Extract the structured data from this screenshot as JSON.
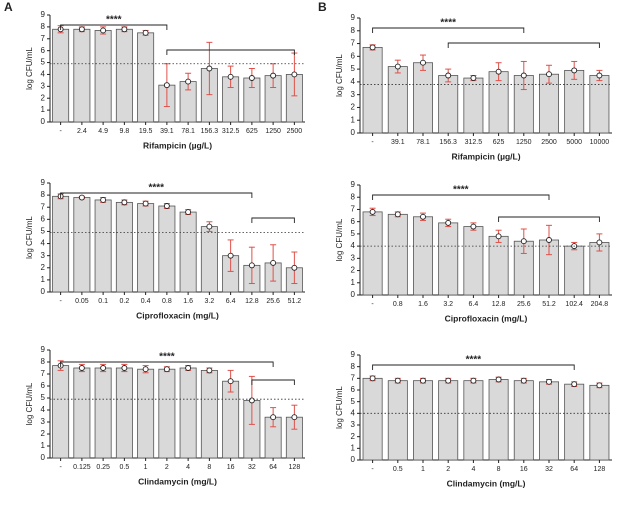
{
  "panel_labels": [
    "A",
    "B"
  ],
  "chart_data": [
    {
      "type": "bar",
      "y_label": "log CFU/mL",
      "x_label": "Rifampicin (µg/L)",
      "significance": "****",
      "threshold": 4.9,
      "ylim": [
        0,
        9
      ],
      "yticks": [
        0,
        1,
        2,
        3,
        4,
        5,
        6,
        7,
        8,
        9
      ],
      "categories": [
        "-",
        "2.4",
        "4.9",
        "9.8",
        "19.5",
        "39.1",
        "78.1",
        "156.3",
        "312.5",
        "625",
        "1250",
        "2500"
      ],
      "values": [
        7.8,
        7.8,
        7.7,
        7.8,
        7.5,
        3.1,
        3.4,
        4.5,
        3.8,
        3.7,
        3.9,
        4.0
      ],
      "errors": [
        0.3,
        0.2,
        0.3,
        0.2,
        0.2,
        1.8,
        0.7,
        2.2,
        0.9,
        0.8,
        1.0,
        1.8
      ]
    },
    {
      "type": "bar",
      "y_label": "log CFU/mL",
      "x_label": "Ciprofloxacin (mg/L)",
      "significance": "****",
      "threshold": 4.9,
      "ylim": [
        0,
        9
      ],
      "yticks": [
        0,
        1,
        2,
        3,
        4,
        5,
        6,
        7,
        8,
        9
      ],
      "categories": [
        "-",
        "0.05",
        "0.1",
        "0.2",
        "0.4",
        "0.8",
        "1.6",
        "3.2",
        "6.4",
        "12.8",
        "25.6",
        "51.2"
      ],
      "values": [
        7.9,
        7.8,
        7.6,
        7.4,
        7.3,
        7.1,
        6.6,
        5.4,
        3.0,
        2.2,
        2.4,
        2.0
      ],
      "errors": [
        0.2,
        0.1,
        0.2,
        0.2,
        0.2,
        0.2,
        0.2,
        0.4,
        1.3,
        1.5,
        1.5,
        1.3
      ]
    },
    {
      "type": "bar",
      "y_label": "log CFU/mL",
      "x_label": "Clindamycin (mg/L)",
      "significance": "****",
      "threshold": 4.9,
      "ylim": [
        0,
        9
      ],
      "yticks": [
        0,
        1,
        2,
        3,
        4,
        5,
        6,
        7,
        8,
        9
      ],
      "categories": [
        "-",
        "0.125",
        "0.25",
        "0.5",
        "1",
        "2",
        "4",
        "8",
        "16",
        "32",
        "64",
        "128"
      ],
      "values": [
        7.7,
        7.5,
        7.5,
        7.5,
        7.4,
        7.4,
        7.5,
        7.3,
        6.4,
        4.8,
        3.4,
        3.4
      ],
      "errors": [
        0.4,
        0.3,
        0.3,
        0.3,
        0.3,
        0.2,
        0.2,
        0.2,
        0.9,
        2.0,
        0.8,
        1.0
      ]
    },
    {
      "type": "bar",
      "y_label": "log CFU/mL",
      "x_label": "Rifampicin (µg/L)",
      "significance": "****",
      "threshold": 3.8,
      "ylim": [
        0,
        9
      ],
      "yticks": [
        0,
        1,
        2,
        3,
        4,
        5,
        6,
        7,
        8,
        9
      ],
      "categories": [
        "-",
        "39.1",
        "78.1",
        "156.3",
        "312.5",
        "625",
        "1250",
        "2500",
        "5000",
        "10000"
      ],
      "values": [
        6.7,
        5.2,
        5.5,
        4.5,
        4.3,
        4.8,
        4.5,
        4.6,
        4.9,
        4.5
      ],
      "errors": [
        0.2,
        0.5,
        0.6,
        0.5,
        0.2,
        0.7,
        1.1,
        0.7,
        0.7,
        0.4
      ]
    },
    {
      "type": "bar",
      "y_label": "log CFU/mL",
      "x_label": "Ciprofloxacin (mg/L)",
      "significance": "****",
      "threshold": 4.0,
      "ylim": [
        0,
        9
      ],
      "yticks": [
        0,
        1,
        2,
        3,
        4,
        5,
        6,
        7,
        8,
        9
      ],
      "categories": [
        "-",
        "0.8",
        "1.6",
        "3.2",
        "6.4",
        "12.8",
        "25.6",
        "51.2",
        "102.4",
        "204.8"
      ],
      "values": [
        6.8,
        6.6,
        6.4,
        5.9,
        5.6,
        4.8,
        4.4,
        4.5,
        4.0,
        4.3
      ],
      "errors": [
        0.3,
        0.2,
        0.3,
        0.3,
        0.3,
        0.5,
        1.0,
        1.2,
        0.3,
        0.7
      ]
    },
    {
      "type": "bar",
      "y_label": "log CFU/mL",
      "x_label": "Clindamycin (mg/L)",
      "significance": "****",
      "threshold": 4.0,
      "ylim": [
        0,
        9
      ],
      "yticks": [
        0,
        1,
        2,
        3,
        4,
        5,
        6,
        7,
        8,
        9
      ],
      "categories": [
        "-",
        "0.5",
        "1",
        "2",
        "4",
        "8",
        "16",
        "32",
        "64",
        "128"
      ],
      "values": [
        7.0,
        6.8,
        6.8,
        6.8,
        6.8,
        6.9,
        6.8,
        6.7,
        6.5,
        6.4
      ],
      "errors": [
        0.2,
        0.2,
        0.2,
        0.2,
        0.2,
        0.2,
        0.2,
        0.2,
        0.2,
        0.2
      ]
    }
  ]
}
